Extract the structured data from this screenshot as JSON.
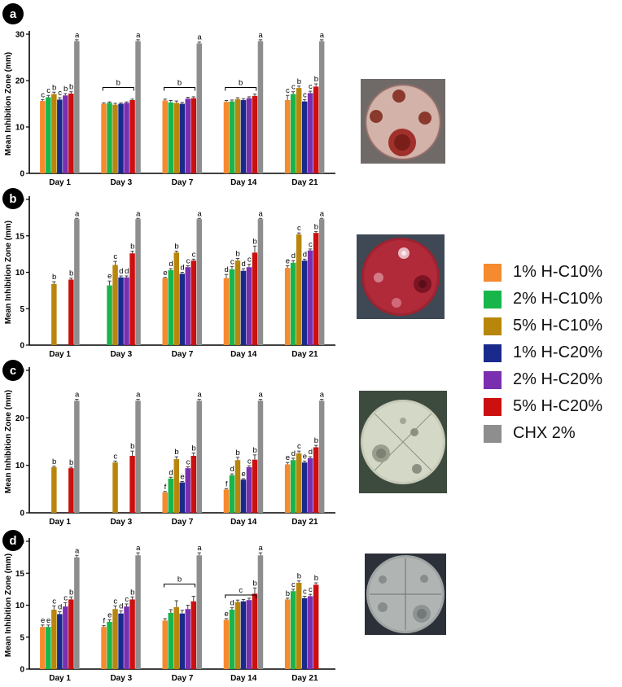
{
  "series": [
    {
      "name": "1% H-C10%",
      "color": "#F58A2E"
    },
    {
      "name": "2% H-C10%",
      "color": "#18B64A"
    },
    {
      "name": "5% H-C10%",
      "color": "#B8860B"
    },
    {
      "name": "1% H-C20%",
      "color": "#1A2A8C"
    },
    {
      "name": "2% H-C20%",
      "color": "#7A2FB0"
    },
    {
      "name": "5% H-C20%",
      "color": "#CC0F0F"
    },
    {
      "name": "CHX 2%",
      "color": "#8E8E8E"
    }
  ],
  "chart_data": [
    {
      "panel": "a",
      "type": "bar",
      "ylabel": "Mean Inhibition Zone (mm)",
      "ylim": [
        0,
        30
      ],
      "yticks": [
        0,
        10,
        20,
        30
      ],
      "categories": [
        "Day 1",
        "Day 3",
        "Day 7",
        "Day 14",
        "Day 21"
      ],
      "values": [
        [
          15.6,
          16.4,
          17.1,
          15.9,
          16.8,
          17.2,
          28.5
        ],
        [
          15.0,
          15.2,
          14.8,
          15.0,
          15.2,
          15.8,
          28.5
        ],
        [
          15.7,
          15.3,
          15.2,
          15.0,
          16.1,
          16.2,
          28.0
        ],
        [
          15.4,
          15.5,
          16.0,
          15.8,
          16.2,
          16.7,
          28.5
        ],
        [
          15.8,
          17.1,
          18.4,
          15.5,
          17.3,
          18.7,
          28.5
        ]
      ],
      "errors": [
        [
          0.3,
          0.4,
          0.4,
          0.4,
          0.4,
          0.4,
          0.3
        ],
        [
          0.2,
          0.2,
          0.3,
          0.2,
          0.2,
          0.2,
          0.3
        ],
        [
          0.3,
          0.4,
          0.4,
          0.3,
          0.3,
          0.3,
          0.3
        ],
        [
          0.3,
          0.3,
          0.3,
          0.3,
          0.3,
          0.4,
          0.3
        ],
        [
          1.0,
          0.5,
          0.4,
          0.4,
          0.4,
          0.6,
          0.3
        ]
      ],
      "sig_labels": [
        [
          "c",
          "c",
          "b",
          "c",
          "b",
          "b",
          "a"
        ],
        [
          "",
          "",
          "",
          "",
          "",
          "",
          "a"
        ],
        [
          "",
          "",
          "",
          "",
          "",
          "",
          "a"
        ],
        [
          "",
          "",
          "",
          "",
          "",
          "",
          "a"
        ],
        [
          "c",
          "c",
          "b",
          "c",
          "c",
          "b",
          "a"
        ]
      ],
      "brackets": [
        {
          "category": 1,
          "label": "b",
          "y": 18.5
        },
        {
          "category": 2,
          "label": "b",
          "y": 18.5
        },
        {
          "category": 3,
          "label": "b",
          "y": 18.5
        }
      ]
    },
    {
      "panel": "b",
      "type": "bar",
      "ylabel": "Mean Inhibition Zone (mm)",
      "ylim": [
        0,
        20
      ],
      "yticks": [
        0,
        5,
        10,
        15,
        20
      ],
      "categories": [
        "Day 1",
        "Day 3",
        "Day 7",
        "Day 14",
        "Day 21"
      ],
      "values": [
        [
          null,
          null,
          8.4,
          null,
          null,
          9.0,
          17.3
        ],
        [
          null,
          8.2,
          11.0,
          9.3,
          9.3,
          12.6,
          17.3
        ],
        [
          9.2,
          10.3,
          12.7,
          9.8,
          10.7,
          11.6,
          17.3
        ],
        [
          9.2,
          10.4,
          11.6,
          10.2,
          10.7,
          12.7,
          17.3
        ],
        [
          10.6,
          11.3,
          15.2,
          11.6,
          13.0,
          15.4,
          17.3
        ]
      ],
      "errors": [
        [
          0,
          0,
          0.3,
          0,
          0,
          0.2,
          0.1
        ],
        [
          0,
          0.6,
          0.5,
          0.2,
          0.2,
          0.3,
          0.1
        ],
        [
          0.1,
          0.2,
          0.2,
          0.2,
          0.2,
          0.2,
          0.1
        ],
        [
          0.5,
          0.4,
          0.3,
          0.3,
          0.4,
          0.9,
          0.1
        ],
        [
          0.3,
          0.3,
          0.2,
          0.2,
          0.2,
          0.2,
          0.1
        ]
      ],
      "sig_labels": [
        [
          "",
          "",
          "b",
          "",
          "",
          "b",
          "a"
        ],
        [
          "",
          "e",
          "c",
          "d",
          "d",
          "b",
          "a"
        ],
        [
          "e",
          "d",
          "b",
          "d",
          "c",
          "c",
          "a"
        ],
        [
          "d",
          "c",
          "b",
          "d",
          "c",
          "b",
          "a"
        ],
        [
          "e",
          "d",
          "c",
          "d",
          "c",
          "b",
          "a"
        ]
      ],
      "brackets": []
    },
    {
      "panel": "c",
      "type": "bar",
      "ylabel": "Mean Inhibition Zone (mm)",
      "ylim": [
        0,
        30
      ],
      "yticks": [
        0,
        10,
        20,
        30
      ],
      "categories": [
        "Day 1",
        "Day 3",
        "Day 7",
        "Day 14",
        "Day 21"
      ],
      "values": [
        [
          null,
          null,
          9.6,
          null,
          null,
          9.4,
          23.6
        ],
        [
          null,
          null,
          10.6,
          null,
          null,
          12.0,
          23.6
        ],
        [
          4.3,
          7.2,
          11.3,
          6.4,
          9.4,
          12.0,
          23.6
        ],
        [
          4.9,
          7.9,
          11.1,
          7.0,
          9.6,
          11.2,
          23.6
        ],
        [
          10.2,
          11.1,
          12.5,
          10.6,
          11.5,
          13.8,
          23.6
        ]
      ],
      "errors": [
        [
          0,
          0,
          0.2,
          0,
          0,
          0.2,
          0.3
        ],
        [
          0,
          0,
          0.3,
          0,
          0,
          1.0,
          0.3
        ],
        [
          0.2,
          0.3,
          0.5,
          0.2,
          0.3,
          0.6,
          0.3
        ],
        [
          0.2,
          0.3,
          0.6,
          0.2,
          0.3,
          1.0,
          0.3
        ],
        [
          0.4,
          0.4,
          0.5,
          0.3,
          0.3,
          0.4,
          0.3
        ]
      ],
      "sig_labels": [
        [
          "",
          "",
          "b",
          "",
          "",
          "b",
          "a"
        ],
        [
          "",
          "",
          "c",
          "",
          "",
          "b",
          "a"
        ],
        [
          "f",
          "d",
          "b",
          "e",
          "c",
          "b",
          "a"
        ],
        [
          "f",
          "d",
          "b",
          "e",
          "c",
          "b",
          "a"
        ],
        [
          "e",
          "d",
          "c",
          "e",
          "d",
          "b",
          "a"
        ]
      ],
      "brackets": []
    },
    {
      "panel": "d",
      "type": "bar",
      "ylabel": "Mean Inhibition Zone (mm)",
      "ylim": [
        0,
        20
      ],
      "yticks": [
        0,
        5,
        10,
        15,
        20
      ],
      "categories": [
        "Day 1",
        "Day 3",
        "Day 7",
        "Day 14",
        "Day 21"
      ],
      "values": [
        [
          6.6,
          6.6,
          9.3,
          8.6,
          9.8,
          10.9,
          17.5
        ],
        [
          6.6,
          7.4,
          9.4,
          8.7,
          9.8,
          10.9,
          17.8
        ],
        [
          7.6,
          8.8,
          9.7,
          8.7,
          9.4,
          10.6,
          17.8
        ],
        [
          7.7,
          9.3,
          10.5,
          10.6,
          10.8,
          11.8,
          17.8
        ],
        [
          10.9,
          12.2,
          13.5,
          11.1,
          11.4,
          13.2,
          null
        ]
      ],
      "errors": [
        [
          0.3,
          0.3,
          0.6,
          0.4,
          0.6,
          0.4,
          0.3
        ],
        [
          0.2,
          0.3,
          0.5,
          0.4,
          0.4,
          0.4,
          0.4
        ],
        [
          0.3,
          0.5,
          1.0,
          0.5,
          0.6,
          0.8,
          0.4
        ],
        [
          0.2,
          0.3,
          0.3,
          0.3,
          0.3,
          0.9,
          0.4
        ],
        [
          0.2,
          0.3,
          0.3,
          0.3,
          0.3,
          0.3,
          0
        ]
      ],
      "sig_labels": [
        [
          "e",
          "e",
          "c",
          "d",
          "c",
          "b",
          "a"
        ],
        [
          "f",
          "e",
          "c",
          "d",
          "c",
          "b",
          "a"
        ],
        [
          "",
          "",
          "",
          "",
          "",
          "",
          "a"
        ],
        [
          "e",
          "d",
          "",
          "",
          "",
          "b",
          "a"
        ],
        [
          "b",
          "c",
          "b",
          "c",
          "c",
          "b",
          ""
        ]
      ],
      "brackets": [
        {
          "category": 2,
          "label": "b",
          "y": 13.3
        },
        {
          "category": 3,
          "label": "c",
          "y": 11.6
        }
      ]
    }
  ]
}
